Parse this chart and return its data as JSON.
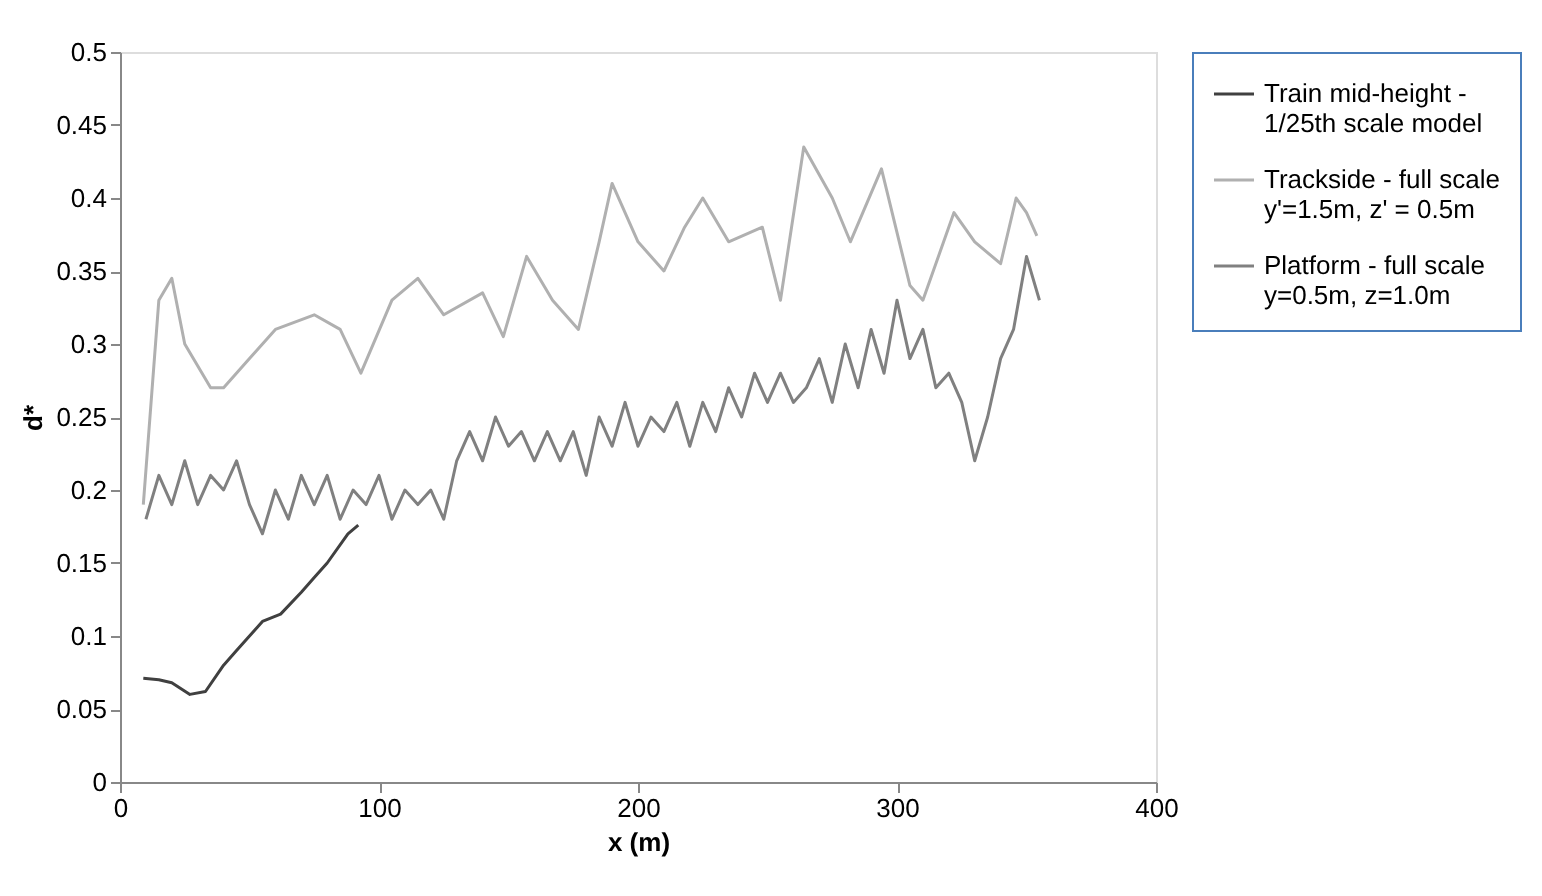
{
  "chart_data": {
    "type": "line",
    "xlabel": "x (m)",
    "ylabel": "d*",
    "xlim": [
      0,
      400
    ],
    "xticks": [
      0,
      100,
      200,
      300,
      400
    ],
    "ylim": [
      0,
      0.5
    ],
    "yticks": [
      0,
      0.05,
      0.1,
      0.15,
      0.2,
      0.25,
      0.3,
      0.35,
      0.4,
      0.45,
      0.5
    ],
    "grid": false,
    "legend": "right",
    "marker": "none",
    "line_style": "solid",
    "series": [
      {
        "name": "Train mid-height -\n1/25th scale model",
        "color": "#404040",
        "x": [
          9,
          15,
          20,
          27,
          33,
          40,
          45,
          50,
          55,
          62,
          70,
          75,
          80,
          88,
          92
        ],
        "values": [
          0.071,
          0.07,
          0.068,
          0.06,
          0.062,
          0.08,
          0.09,
          0.1,
          0.11,
          0.115,
          0.13,
          0.14,
          0.15,
          0.17,
          0.176
        ]
      },
      {
        "name": "Trackside - full scale\ny'=1.5m, z' = 0.5m",
        "color": "#b0b0b0",
        "x": [
          9,
          15,
          20,
          25,
          35,
          40,
          50,
          60,
          75,
          85,
          93,
          105,
          115,
          125,
          140,
          148,
          157,
          167,
          177,
          185,
          190,
          200,
          210,
          218,
          225,
          235,
          248,
          255,
          264,
          275,
          282,
          294,
          305,
          310,
          322,
          330,
          340,
          346,
          350,
          354
        ],
        "values": [
          0.19,
          0.33,
          0.345,
          0.3,
          0.27,
          0.27,
          0.29,
          0.31,
          0.32,
          0.31,
          0.28,
          0.33,
          0.345,
          0.32,
          0.335,
          0.305,
          0.36,
          0.33,
          0.31,
          0.37,
          0.41,
          0.37,
          0.35,
          0.38,
          0.4,
          0.37,
          0.38,
          0.33,
          0.435,
          0.4,
          0.37,
          0.42,
          0.34,
          0.33,
          0.39,
          0.37,
          0.355,
          0.4,
          0.39,
          0.374
        ]
      },
      {
        "name": "Platform - full scale\ny=0.5m, z=1.0m",
        "color": "#808080",
        "x": [
          10,
          15,
          20,
          25,
          30,
          35,
          40,
          45,
          50,
          55,
          60,
          65,
          70,
          75,
          80,
          85,
          90,
          95,
          100,
          105,
          110,
          115,
          120,
          125,
          130,
          135,
          140,
          145,
          150,
          155,
          160,
          165,
          170,
          175,
          180,
          185,
          190,
          195,
          200,
          205,
          210,
          215,
          220,
          225,
          230,
          235,
          240,
          245,
          250,
          255,
          260,
          265,
          270,
          275,
          280,
          285,
          290,
          295,
          300,
          305,
          310,
          315,
          320,
          325,
          330,
          335,
          340,
          345,
          350,
          355
        ],
        "values": [
          0.18,
          0.21,
          0.19,
          0.22,
          0.19,
          0.21,
          0.2,
          0.22,
          0.19,
          0.17,
          0.2,
          0.18,
          0.21,
          0.19,
          0.21,
          0.18,
          0.2,
          0.19,
          0.21,
          0.18,
          0.2,
          0.19,
          0.2,
          0.18,
          0.22,
          0.24,
          0.22,
          0.25,
          0.23,
          0.24,
          0.22,
          0.24,
          0.22,
          0.24,
          0.21,
          0.25,
          0.23,
          0.26,
          0.23,
          0.25,
          0.24,
          0.26,
          0.23,
          0.26,
          0.24,
          0.27,
          0.25,
          0.28,
          0.26,
          0.28,
          0.26,
          0.27,
          0.29,
          0.26,
          0.3,
          0.27,
          0.31,
          0.28,
          0.33,
          0.29,
          0.31,
          0.27,
          0.28,
          0.26,
          0.22,
          0.25,
          0.29,
          0.31,
          0.36,
          0.33
        ]
      }
    ]
  }
}
